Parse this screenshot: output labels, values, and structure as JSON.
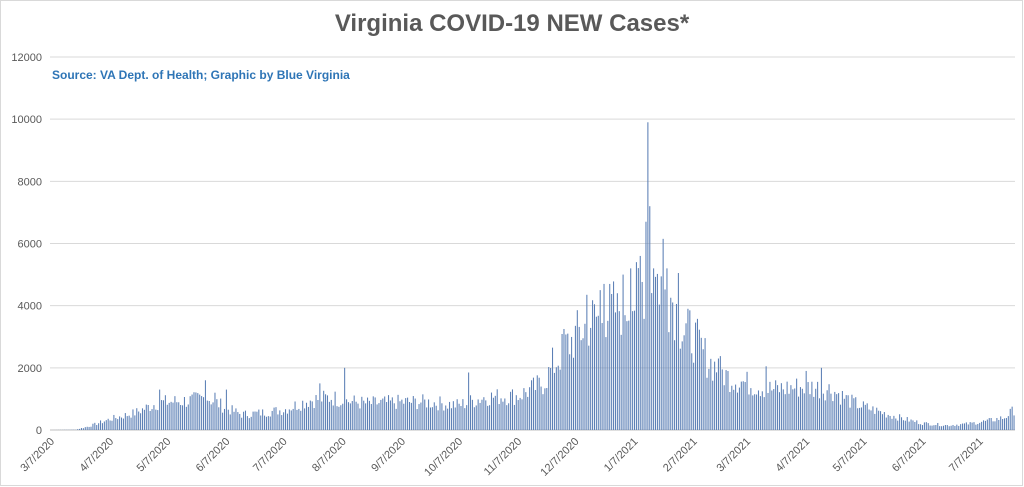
{
  "chart_data": {
    "type": "bar",
    "title": "Virginia COVID-19 NEW Cases*",
    "subtitle": "Source: VA Dept. of Health; Graphic by Blue Virginia",
    "xlabel": "",
    "ylabel": "",
    "ylim": [
      0,
      12000
    ],
    "y_ticks": [
      "0",
      "2000",
      "4000",
      "6000",
      "8000",
      "10000",
      "12000"
    ],
    "x_ticks": [
      "3/7/2020",
      "4/7/2020",
      "5/7/2020",
      "6/7/2020",
      "7/7/2020",
      "8/7/2020",
      "9/7/2020",
      "10/7/2020",
      "11/7/2020",
      "12/7/2020",
      "1/7/2021",
      "2/7/2021",
      "3/7/2021",
      "4/7/2021",
      "5/7/2021",
      "6/7/2021",
      "7/7/2021"
    ],
    "x_start": "3/7/2020",
    "grid": true,
    "bar_color": "#5b7fb5",
    "anchors": [
      [
        "3/7/2020",
        0
      ],
      [
        "3/20/2020",
        10
      ],
      [
        "3/27/2020",
        120
      ],
      [
        "4/7/2020",
        350
      ],
      [
        "4/20/2020",
        550
      ],
      [
        "5/1/2020",
        850
      ],
      [
        "5/7/2020",
        900
      ],
      [
        "5/20/2020",
        950
      ],
      [
        "5/28/2020",
        1050
      ],
      [
        "6/7/2020",
        700
      ],
      [
        "6/15/2020",
        500
      ],
      [
        "6/25/2020",
        550
      ],
      [
        "7/7/2020",
        650
      ],
      [
        "7/20/2020",
        950
      ],
      [
        "8/1/2020",
        1050
      ],
      [
        "8/7/2020",
        950
      ],
      [
        "8/20/2020",
        850
      ],
      [
        "9/7/2020",
        900
      ],
      [
        "9/20/2020",
        900
      ],
      [
        "10/7/2020",
        800
      ],
      [
        "10/20/2020",
        1050
      ],
      [
        "11/7/2020",
        1100
      ],
      [
        "11/20/2020",
        1500
      ],
      [
        "11/30/2020",
        2500
      ],
      [
        "12/7/2020",
        3000
      ],
      [
        "12/15/2020",
        3500
      ],
      [
        "12/25/2020",
        3800
      ],
      [
        "1/7/2021",
        4200
      ],
      [
        "1/14/2021",
        5000
      ],
      [
        "1/20/2021",
        4800
      ],
      [
        "1/27/2021",
        4200
      ],
      [
        "2/1/2021",
        3200
      ],
      [
        "2/7/2021",
        3000
      ],
      [
        "2/15/2021",
        2200
      ],
      [
        "2/25/2021",
        1700
      ],
      [
        "3/7/2021",
        1500
      ],
      [
        "3/20/2021",
        1300
      ],
      [
        "4/7/2021",
        1400
      ],
      [
        "4/20/2021",
        1300
      ],
      [
        "5/1/2021",
        900
      ],
      [
        "5/7/2021",
        750
      ],
      [
        "5/20/2021",
        500
      ],
      [
        "6/1/2021",
        300
      ],
      [
        "6/7/2021",
        220
      ],
      [
        "6/20/2021",
        150
      ],
      [
        "7/1/2021",
        200
      ],
      [
        "7/10/2021",
        280
      ],
      [
        "7/20/2021",
        400
      ],
      [
        "7/25/2021",
        650
      ]
    ],
    "spikes": [
      [
        "5/3/2020",
        1300
      ],
      [
        "5/27/2020",
        1600
      ],
      [
        "6/1/2020",
        1200
      ],
      [
        "6/7/2020",
        1300
      ],
      [
        "7/26/2020",
        1500
      ],
      [
        "8/8/2020",
        2000
      ],
      [
        "10/12/2020",
        1850
      ],
      [
        "11/25/2020",
        2650
      ],
      [
        "12/1/2020",
        3250
      ],
      [
        "12/3/2020",
        3100
      ],
      [
        "12/13/2020",
        4350
      ],
      [
        "12/20/2020",
        4500
      ],
      [
        "12/22/2020",
        4700
      ],
      [
        "12/29/2020",
        4400
      ],
      [
        "1/1/2021",
        5000
      ],
      [
        "1/5/2021",
        5200
      ],
      [
        "1/8/2021",
        5400
      ],
      [
        "1/10/2021",
        5600
      ],
      [
        "1/13/2021",
        6700
      ],
      [
        "1/14/2021",
        9900
      ],
      [
        "1/15/2021",
        7200
      ],
      [
        "1/17/2021",
        5200
      ],
      [
        "1/22/2021",
        6150
      ],
      [
        "1/24/2021",
        5200
      ],
      [
        "1/30/2021",
        5050
      ],
      [
        "2/5/2021",
        3850
      ],
      [
        "2/20/2021",
        2300
      ],
      [
        "3/17/2021",
        2050
      ],
      [
        "4/7/2021",
        1900
      ],
      [
        "4/15/2021",
        2000
      ],
      [
        "7/26/2021",
        950
      ]
    ]
  }
}
